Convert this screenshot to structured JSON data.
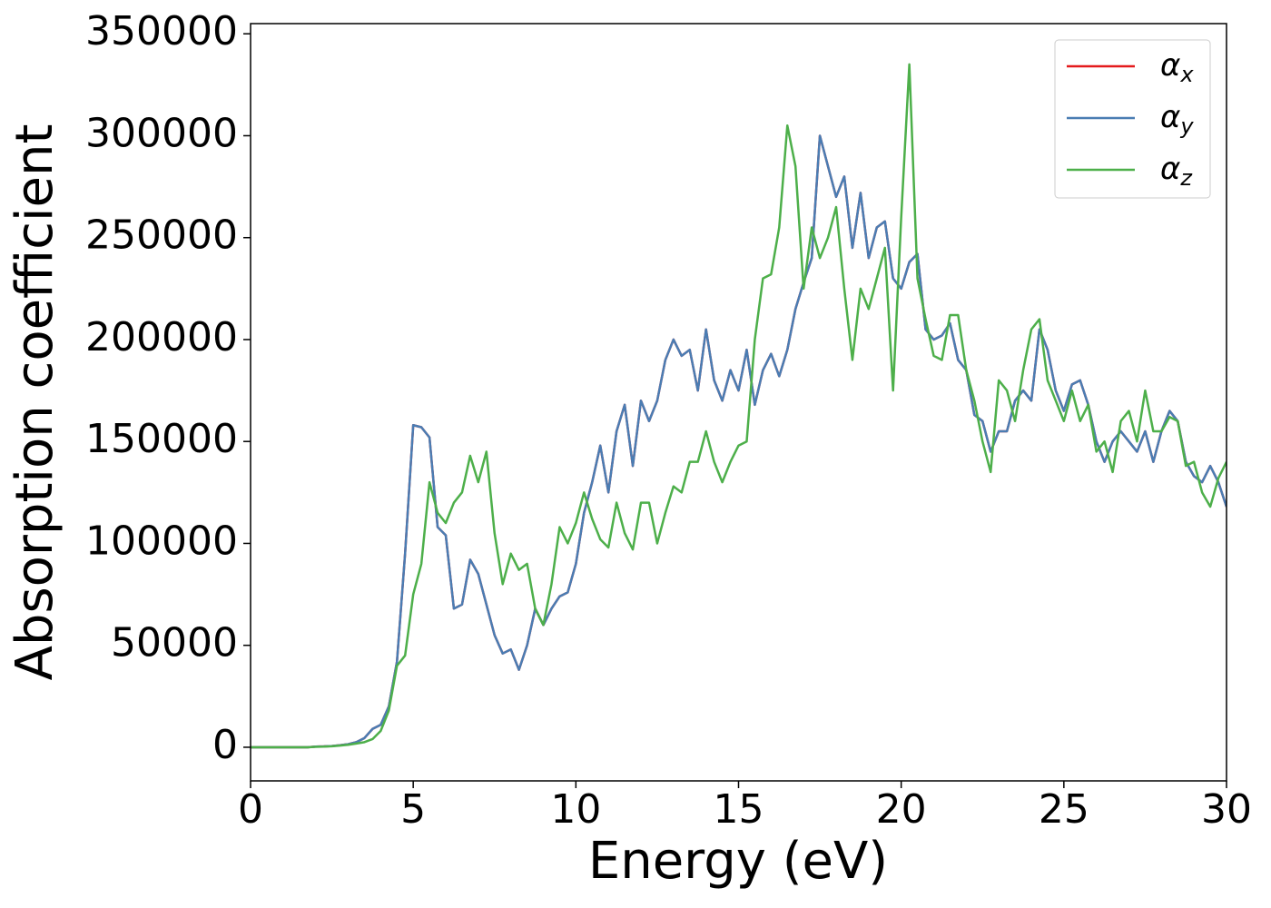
{
  "chart_data": {
    "type": "line",
    "xlabel": "Energy (eV)",
    "ylabel": "Absorption coefficient",
    "x": [
      0,
      0.25,
      0.5,
      0.75,
      1,
      1.25,
      1.5,
      1.75,
      2,
      2.25,
      2.5,
      2.75,
      3,
      3.25,
      3.5,
      3.75,
      4,
      4.25,
      4.5,
      4.75,
      5,
      5.25,
      5.5,
      5.75,
      6,
      6.25,
      6.5,
      6.75,
      7,
      7.25,
      7.5,
      7.75,
      8,
      8.25,
      8.5,
      8.75,
      9,
      9.25,
      9.5,
      9.75,
      10,
      10.25,
      10.5,
      10.75,
      11,
      11.25,
      11.5,
      11.75,
      12,
      12.25,
      12.5,
      12.75,
      13,
      13.25,
      13.5,
      13.75,
      14,
      14.25,
      14.5,
      14.75,
      15,
      15.25,
      15.5,
      15.75,
      16,
      16.25,
      16.5,
      16.75,
      17,
      17.25,
      17.5,
      17.75,
      18,
      18.25,
      18.5,
      18.75,
      19,
      19.25,
      19.5,
      19.75,
      20,
      20.25,
      20.5,
      20.75,
      21,
      21.25,
      21.5,
      21.75,
      22,
      22.25,
      22.5,
      22.75,
      23,
      23.25,
      23.5,
      23.75,
      24,
      24.25,
      24.5,
      24.75,
      25,
      25.25,
      25.5,
      25.75,
      26,
      26.25,
      26.5,
      26.75,
      27,
      27.25,
      27.5,
      27.75,
      28,
      28.25,
      28.5,
      28.75,
      29,
      29.25,
      29.5,
      29.75,
      30
    ],
    "series": [
      {
        "name": "αx",
        "color": "#e41a1c",
        "values": [
          0,
          0,
          0,
          0,
          0,
          0,
          0,
          0,
          300,
          400,
          600,
          1000,
          1500,
          2500,
          4500,
          9000,
          11000,
          20000,
          42000,
          95000,
          158000,
          157000,
          152000,
          108000,
          104000,
          68000,
          70000,
          92000,
          85000,
          70000,
          55000,
          46000,
          48000,
          38000,
          50000,
          68000,
          60000,
          68000,
          74000,
          76000,
          90000,
          115000,
          130000,
          148000,
          125000,
          155000,
          168000,
          138000,
          170000,
          160000,
          170000,
          190000,
          200000,
          192000,
          195000,
          175000,
          205000,
          180000,
          170000,
          185000,
          175000,
          195000,
          168000,
          185000,
          193000,
          182000,
          195000,
          215000,
          228000,
          240000,
          300000,
          285000,
          270000,
          280000,
          245000,
          272000,
          240000,
          255000,
          258000,
          230000,
          225000,
          238000,
          242000,
          205000,
          200000,
          202000,
          208000,
          190000,
          185000,
          163000,
          160000,
          145000,
          155000,
          155000,
          170000,
          175000,
          170000,
          205000,
          195000,
          175000,
          165000,
          178000,
          180000,
          168000,
          150000,
          140000,
          150000,
          155000,
          150000,
          145000,
          155000,
          140000,
          155000,
          165000,
          160000,
          140000,
          133000,
          130000,
          138000,
          130000,
          118000
        ]
      },
      {
        "name": "αy",
        "color": "#4a7db3",
        "values": [
          0,
          0,
          0,
          0,
          0,
          0,
          0,
          0,
          300,
          400,
          600,
          1000,
          1500,
          2500,
          4500,
          9000,
          11000,
          20000,
          42000,
          95000,
          158000,
          157000,
          152000,
          108000,
          104000,
          68000,
          70000,
          92000,
          85000,
          70000,
          55000,
          46000,
          48000,
          38000,
          50000,
          68000,
          60000,
          68000,
          74000,
          76000,
          90000,
          115000,
          130000,
          148000,
          125000,
          155000,
          168000,
          138000,
          170000,
          160000,
          170000,
          190000,
          200000,
          192000,
          195000,
          175000,
          205000,
          180000,
          170000,
          185000,
          175000,
          195000,
          168000,
          185000,
          193000,
          182000,
          195000,
          215000,
          228000,
          240000,
          300000,
          285000,
          270000,
          280000,
          245000,
          272000,
          240000,
          255000,
          258000,
          230000,
          225000,
          238000,
          242000,
          205000,
          200000,
          202000,
          208000,
          190000,
          185000,
          163000,
          160000,
          145000,
          155000,
          155000,
          170000,
          175000,
          170000,
          205000,
          195000,
          175000,
          165000,
          178000,
          180000,
          168000,
          150000,
          140000,
          150000,
          155000,
          150000,
          145000,
          155000,
          140000,
          155000,
          165000,
          160000,
          140000,
          133000,
          130000,
          138000,
          130000,
          118000
        ]
      },
      {
        "name": "αz",
        "color": "#4daf4a",
        "values": [
          0,
          0,
          0,
          0,
          0,
          0,
          0,
          0,
          200,
          300,
          500,
          800,
          1200,
          1800,
          2500,
          4000,
          8000,
          18000,
          40000,
          45000,
          75000,
          90000,
          130000,
          115000,
          110000,
          120000,
          125000,
          143000,
          130000,
          145000,
          105000,
          80000,
          95000,
          87000,
          90000,
          68000,
          60000,
          80000,
          108000,
          100000,
          110000,
          125000,
          112000,
          102000,
          98000,
          120000,
          105000,
          97000,
          120000,
          120000,
          100000,
          115000,
          128000,
          125000,
          140000,
          140000,
          155000,
          140000,
          130000,
          140000,
          148000,
          150000,
          200000,
          230000,
          232000,
          255000,
          305000,
          285000,
          225000,
          255000,
          240000,
          250000,
          265000,
          225000,
          190000,
          225000,
          215000,
          230000,
          245000,
          175000,
          260000,
          335000,
          230000,
          210000,
          192000,
          190000,
          212000,
          212000,
          185000,
          170000,
          150000,
          135000,
          180000,
          175000,
          160000,
          185000,
          205000,
          210000,
          180000,
          170000,
          160000,
          175000,
          160000,
          168000,
          145000,
          150000,
          135000,
          160000,
          165000,
          150000,
          175000,
          155000,
          155000,
          162000,
          160000,
          138000,
          140000,
          125000,
          118000,
          132000,
          140000
        ]
      }
    ],
    "xlim": [
      0,
      30
    ],
    "xticks": [
      0,
      5,
      10,
      15,
      20,
      25,
      30
    ],
    "ylim": [
      -16500,
      355000
    ],
    "yticks": [
      0,
      50000,
      100000,
      150000,
      200000,
      250000,
      300000,
      350000
    ],
    "legend": "upper right",
    "grid": false
  }
}
